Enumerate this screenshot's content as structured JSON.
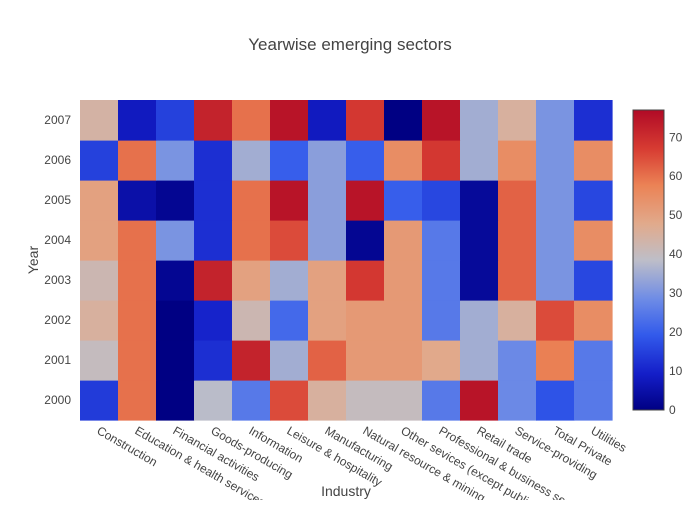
{
  "chart_data": {
    "type": "heatmap",
    "title": "Yearwise emerging sectors",
    "xlabel": "Industry",
    "ylabel": "Year",
    "x": [
      "Construction",
      "Education & health services",
      "Financial activities",
      "Goods-producing",
      "Information",
      "Leisure & hospitality",
      "Manufacturing",
      "Natural resource & mining",
      "Other sevices (except public)",
      "Professional & business services",
      "Retail trade",
      "Service-providing",
      "Total Private",
      "Utilities"
    ],
    "y": [
      "2000",
      "2001",
      "2002",
      "2003",
      "2004",
      "2005",
      "2006",
      "2007"
    ],
    "z": [
      [
        14,
        60,
        0,
        38,
        25,
        65,
        45,
        40,
        40,
        25,
        75,
        28,
        18,
        25
      ],
      [
        40,
        60,
        0,
        12,
        72,
        35,
        62,
        52,
        52,
        48,
        35,
        28,
        58,
        25
      ],
      [
        45,
        60,
        0,
        10,
        42,
        22,
        50,
        52,
        52,
        25,
        35,
        45,
        65,
        55
      ],
      [
        42,
        60,
        2,
        72,
        50,
        35,
        50,
        68,
        52,
        25,
        3,
        62,
        30,
        16
      ],
      [
        50,
        60,
        30,
        12,
        60,
        65,
        32,
        2,
        52,
        25,
        3,
        62,
        30,
        55
      ],
      [
        50,
        5,
        2,
        12,
        60,
        75,
        32,
        75,
        20,
        16,
        3,
        62,
        30,
        16
      ],
      [
        15,
        60,
        30,
        12,
        35,
        20,
        32,
        20,
        55,
        68,
        35,
        55,
        30,
        55
      ],
      [
        44,
        8,
        15,
        72,
        60,
        75,
        8,
        68,
        0,
        75,
        35,
        45,
        30,
        12
      ]
    ],
    "zmin": 0,
    "zmax": 77,
    "colorscale": "coolwarm",
    "colorbar_ticks": [
      0,
      10,
      20,
      30,
      40,
      50,
      60,
      70
    ],
    "grid": false
  }
}
